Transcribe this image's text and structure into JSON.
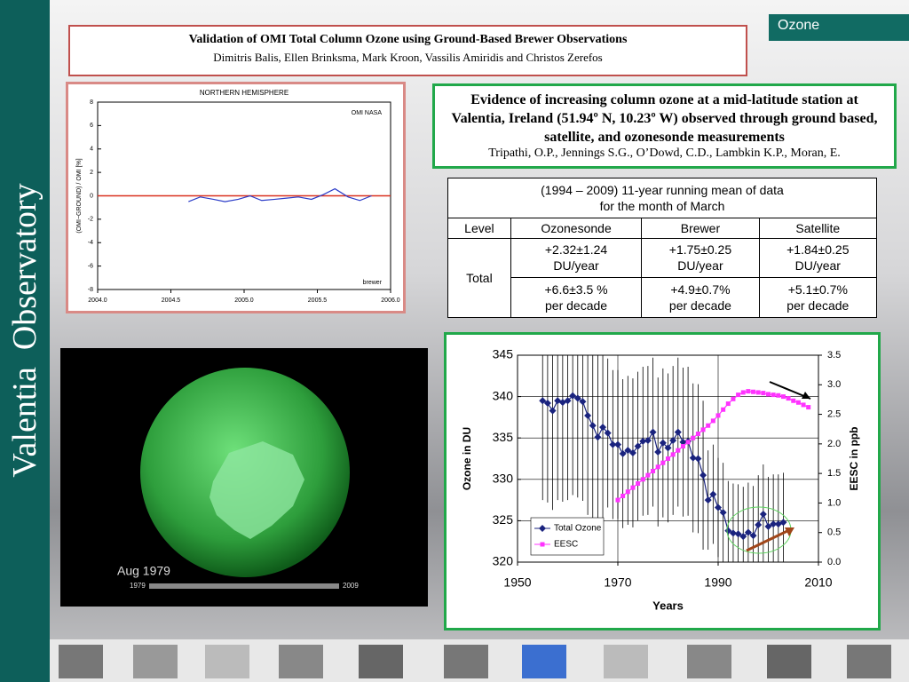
{
  "sidebar": "Valentia  Observatory",
  "tab": "Ozone",
  "header": {
    "title": "Validation of OMI Total Column Ozone using Ground-Based Brewer Observations",
    "authors": "Dimitris Balis, Ellen Brinksma, Mark Kroon, Vassilis Amiridis and Christos Zerefos"
  },
  "evidence": {
    "title": "Evidence of increasing column ozone at a mid-latitude station at Valentia, Ireland (51.94º N, 10.23º W) observed through ground based, satellite, and ozonesonde measurements",
    "citation": "Tripathi, O.P., Jennings S.G., O’Dowd, C.D., Lambkin K.P.,  Moran, E."
  },
  "table": {
    "caption": [
      "(1994 – 2009) 11-year running mean of data",
      "for the month of March"
    ],
    "columns": [
      "Level",
      "Ozonesonde",
      "Brewer",
      "Satellite"
    ],
    "row_label": "Total",
    "rows": [
      [
        "+2.32±1.24",
        "DU/year",
        "+1.75±0.25",
        "DU/year",
        "+1.84±0.25",
        "DU/year"
      ],
      [
        "+6.6±3.5 %",
        "per decade",
        "+4.9±0.7%",
        "per decade",
        "+5.1±0.7%",
        "per decade"
      ]
    ]
  },
  "image": {
    "caption": "Aug 1979",
    "start": "1979",
    "end": "2009"
  },
  "chart_data": [
    {
      "type": "line",
      "title": "NORTHERN HEMISPHERE",
      "ylabel": "(OMI−GROUND) / OMI   [%]",
      "annotations": [
        "OMI NASA",
        "brewer"
      ],
      "xlim": [
        2004.0,
        2006.0
      ],
      "xticks": [
        {
          "value": 2004,
          "label": "2004.0"
        },
        {
          "value": 2004.5,
          "label": "2004.5"
        },
        {
          "value": 2005,
          "label": "2005.0"
        },
        {
          "value": 2005.5,
          "label": "2005.5"
        },
        {
          "value": 2006,
          "label": "2006.0"
        }
      ],
      "ylim": [
        -8,
        8
      ],
      "yticks": [
        -8,
        -6,
        -4,
        -2,
        0,
        2,
        4,
        6,
        8
      ],
      "reference_line": 0,
      "reference_color": "#d9301f",
      "series": [
        {
          "color": "#2a3bc8",
          "x": [
            2004.62,
            2004.7,
            2004.79,
            2004.87,
            2004.96,
            2005.04,
            2005.12,
            2005.21,
            2005.29,
            2005.37,
            2005.46,
            2005.54,
            2005.62,
            2005.71,
            2005.79,
            2005.87
          ],
          "values": [
            -0.5,
            -0.1,
            -0.3,
            -0.5,
            -0.3,
            0.0,
            -0.4,
            -0.3,
            -0.2,
            -0.1,
            -0.3,
            0.1,
            0.6,
            -0.1,
            -0.4,
            0.0
          ]
        }
      ]
    },
    {
      "type": "line",
      "xlabel": "Years",
      "ylabel": "Ozone in DU",
      "y2label": "EESC in ppb",
      "legend": "lower left",
      "xlim": [
        1950,
        2010
      ],
      "xticks": [
        1950,
        1970,
        1990,
        2010
      ],
      "ylim": [
        320,
        345
      ],
      "yticks": [
        320,
        325,
        330,
        335,
        340,
        345
      ],
      "y2lim": [
        0,
        3.5
      ],
      "y2ticks": [
        {
          "value": 0,
          "label": "0.0"
        },
        {
          "value": 0.5,
          "label": "0.5"
        },
        {
          "value": 1,
          "label": "1.0"
        },
        {
          "value": 1.5,
          "label": "1.5"
        },
        {
          "value": 2,
          "label": "2.0"
        },
        {
          "value": 2.5,
          "label": "2.5"
        },
        {
          "value": 3,
          "label": "3.0"
        },
        {
          "value": 3.5,
          "label": "3.5"
        }
      ],
      "series": [
        {
          "name": "Total Ozone",
          "color": "#1a237e",
          "marker": "diamond",
          "x": [
            1955,
            1956,
            1957,
            1958,
            1959,
            1960,
            1961,
            1962,
            1963,
            1964,
            1965,
            1966,
            1967,
            1968,
            1969,
            1970,
            1971,
            1972,
            1973,
            1974,
            1975,
            1976,
            1977,
            1978,
            1979,
            1980,
            1981,
            1982,
            1983,
            1984,
            1985,
            1986,
            1987,
            1988,
            1989,
            1990,
            1991,
            1992,
            1993,
            1994,
            1995,
            1996,
            1997,
            1998,
            1999,
            2000,
            2001,
            2002,
            2003
          ],
          "values": [
            339.5,
            339.2,
            338.3,
            339.5,
            339.3,
            339.5,
            340.1,
            339.8,
            339.4,
            337.7,
            336.5,
            335.1,
            336.3,
            335.6,
            334.2,
            334.2,
            333.1,
            333.5,
            333.2,
            334.0,
            334.6,
            334.7,
            335.7,
            333.3,
            334.4,
            333.8,
            334.7,
            335.7,
            334.5,
            334.6,
            332.6,
            332.5,
            330.5,
            327.5,
            328.2,
            326.6,
            326.0,
            323.8,
            323.5,
            323.4,
            323.1,
            323.6,
            323.2,
            324.5,
            325.8,
            324.3,
            324.6,
            324.6,
            324.8
          ],
          "errors": [
            12,
            12,
            12,
            12,
            12,
            12,
            12,
            12,
            12,
            12,
            12,
            12,
            12,
            9,
            9,
            9,
            9,
            9,
            9,
            9,
            9,
            9,
            9,
            9,
            9,
            9,
            9,
            9,
            9,
            9,
            9,
            9,
            9,
            6,
            6,
            6,
            6,
            6,
            6,
            6,
            6,
            6,
            6,
            6,
            6,
            6,
            6,
            6,
            6
          ]
        },
        {
          "name": "EESC",
          "color": "#ff33ff",
          "marker": "square",
          "axis": "y2",
          "x": [
            1970,
            1971,
            1972,
            1973,
            1974,
            1975,
            1976,
            1977,
            1978,
            1979,
            1980,
            1981,
            1982,
            1983,
            1984,
            1985,
            1986,
            1987,
            1988,
            1989,
            1990,
            1991,
            1992,
            1993,
            1994,
            1995,
            1996,
            1997,
            1998,
            1999,
            2000,
            2001,
            2002,
            2003,
            2004,
            2005,
            2006,
            2007,
            2008
          ],
          "values": [
            1.05,
            1.12,
            1.19,
            1.26,
            1.33,
            1.4,
            1.47,
            1.54,
            1.61,
            1.68,
            1.75,
            1.82,
            1.89,
            1.96,
            2.03,
            2.1,
            2.17,
            2.24,
            2.31,
            2.39,
            2.48,
            2.58,
            2.68,
            2.76,
            2.83,
            2.87,
            2.89,
            2.88,
            2.87,
            2.86,
            2.84,
            2.83,
            2.82,
            2.8,
            2.77,
            2.73,
            2.7,
            2.66,
            2.62
          ]
        }
      ]
    }
  ]
}
